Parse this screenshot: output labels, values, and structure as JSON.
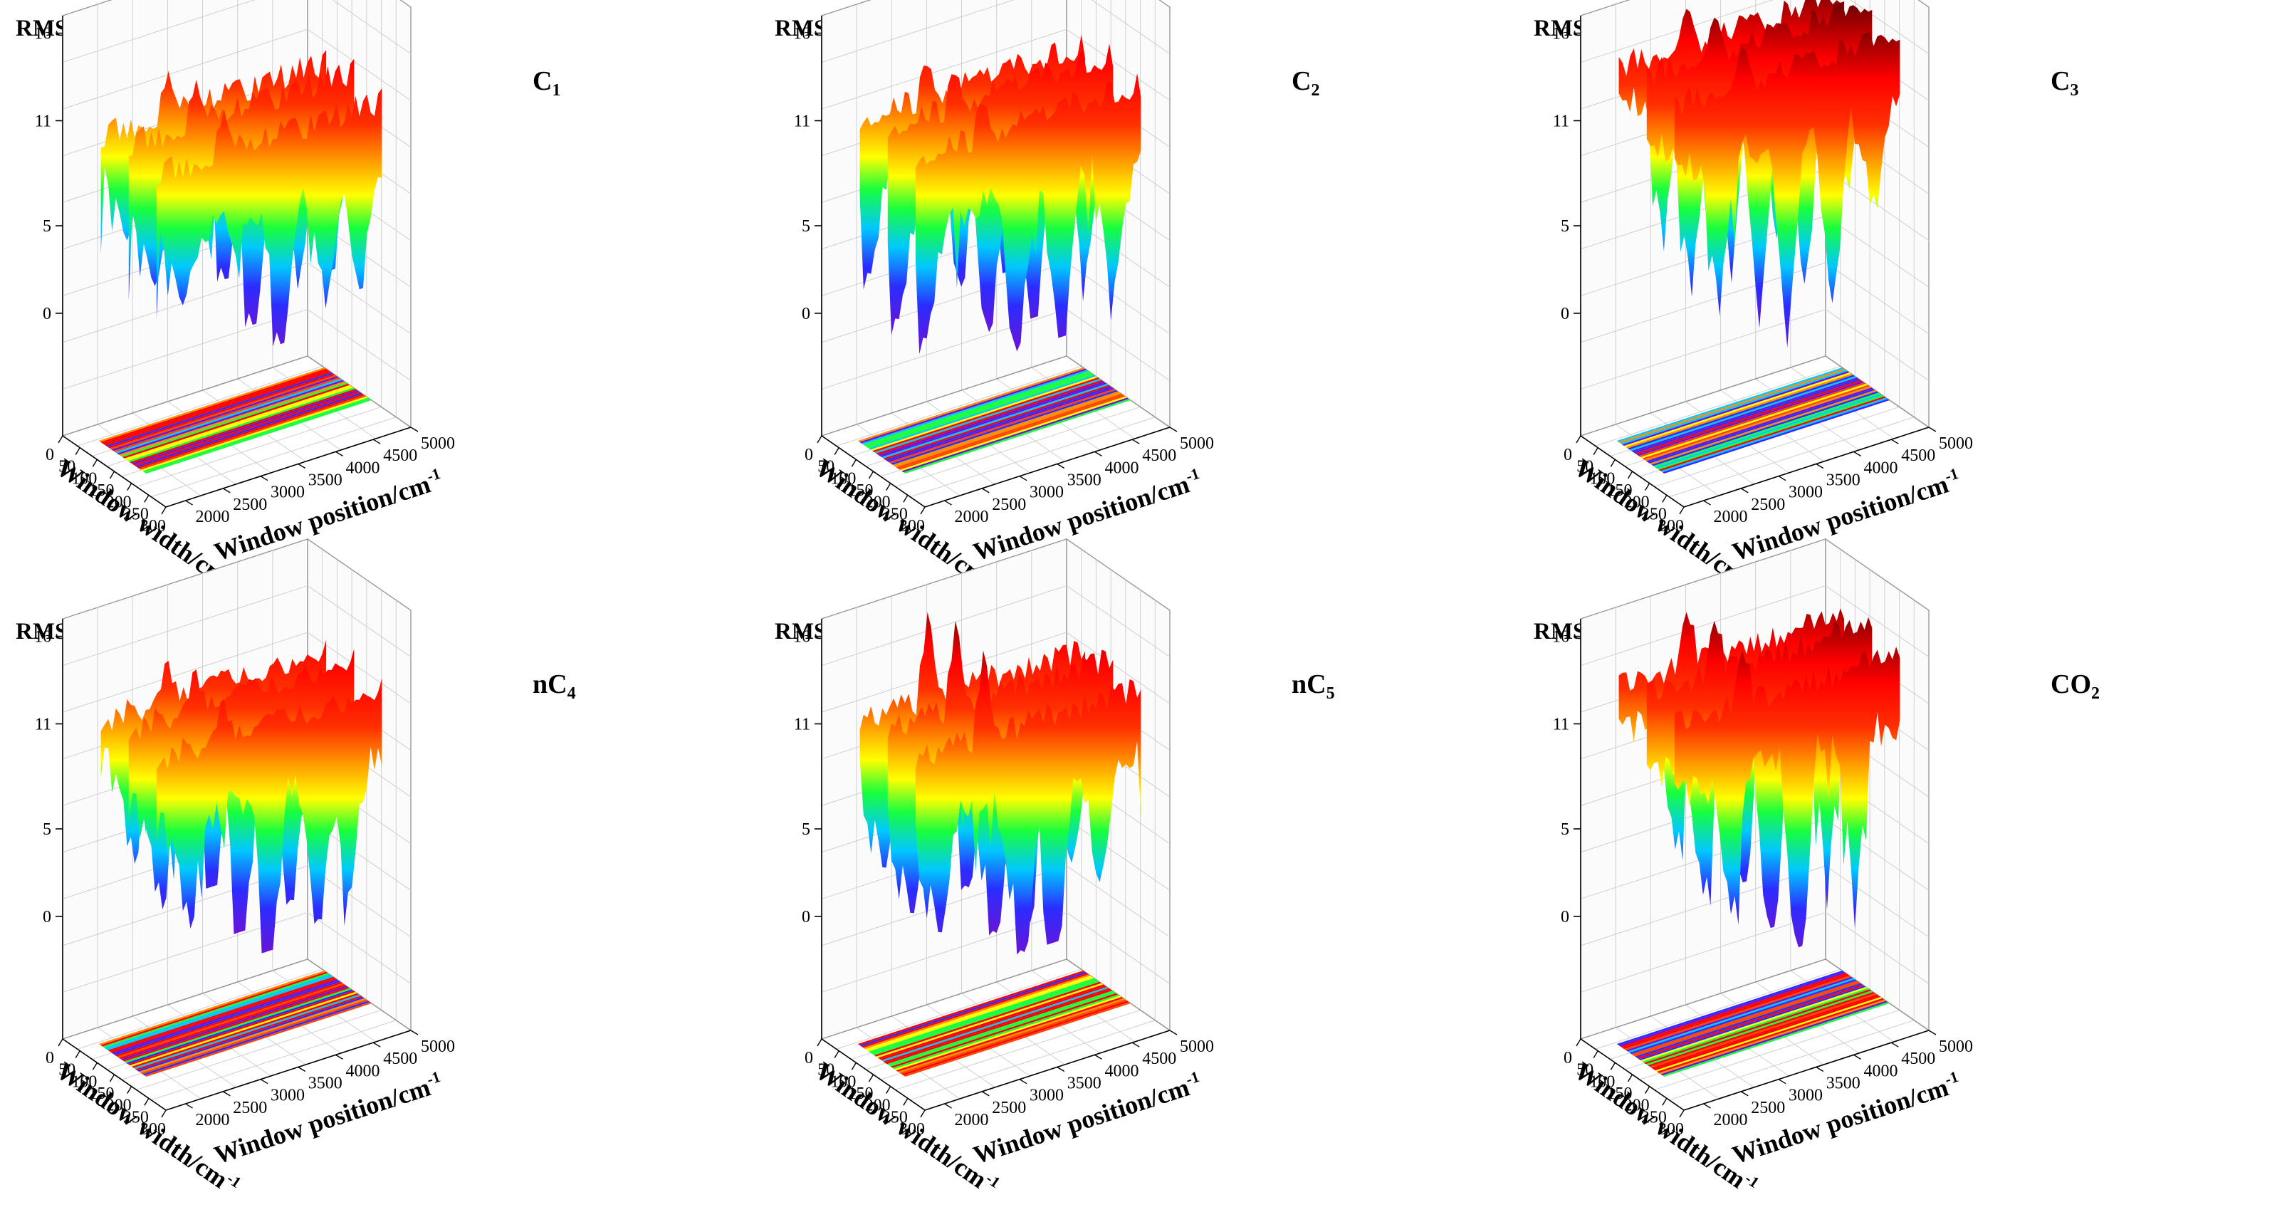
{
  "colors": {
    "colormap": [
      "#6a14d6",
      "#2b2cff",
      "#00c8ff",
      "#18ff3c",
      "#ffff00",
      "#ff8c00",
      "#ff0000",
      "#7a0000"
    ],
    "grid": "#cfcfcf",
    "axis": "#000000"
  },
  "chart_data": [
    {
      "type": "surface3d",
      "label_base": "C",
      "label_sub": "1",
      "zlabel": "RMSECV/%",
      "xlabel": "Window width/cm",
      "ylabel": "Window position/cm",
      "unit_exp": "-1",
      "xticks": [
        "0",
        "50",
        "100",
        "150",
        "200",
        "250",
        "300"
      ],
      "yticks": [
        "2000",
        "2500",
        "3000",
        "3500",
        "4000",
        "4500",
        "5000"
      ],
      "zticks": [
        "0",
        "5",
        "11",
        "16"
      ],
      "zlim": [
        -7,
        17
      ],
      "surface": {
        "base": 10.5,
        "min": -1.5,
        "dips": [
          {
            "x": 0.12,
            "d": 5
          },
          {
            "x": 0.55,
            "d": 9
          },
          {
            "x": 0.75,
            "d": 6
          },
          {
            "x": 0.9,
            "d": 7
          }
        ],
        "peak": 2.5,
        "seed": 11
      }
    },
    {
      "type": "surface3d",
      "label_base": "C",
      "label_sub": "2",
      "zlabel": "RMSECV/%",
      "xlabel": "Window width/cm",
      "ylabel": "Window position/cm",
      "unit_exp": "-1",
      "xticks": [
        "0",
        "50",
        "100",
        "150",
        "200",
        "250",
        "300"
      ],
      "yticks": [
        "2000",
        "2500",
        "3000",
        "3500",
        "4000",
        "4500",
        "5000"
      ],
      "zticks": [
        "0",
        "5",
        "11",
        "16"
      ],
      "zlim": [
        -7,
        17
      ],
      "surface": {
        "base": 11.5,
        "min": -1.5,
        "dips": [
          {
            "x": 0.05,
            "d": 7
          },
          {
            "x": 0.45,
            "d": 10
          },
          {
            "x": 0.65,
            "d": 11
          },
          {
            "x": 0.88,
            "d": 8
          }
        ],
        "peak": 2.5,
        "seed": 23
      }
    },
    {
      "type": "surface3d",
      "label_base": "C",
      "label_sub": "3",
      "zlabel": "RMSECV/%",
      "xlabel": "Window width/cm",
      "ylabel": "Window position/cm",
      "unit_exp": "-1",
      "xticks": [
        "0",
        "50",
        "100",
        "150",
        "200",
        "250",
        "300"
      ],
      "yticks": [
        "2000",
        "2500",
        "3000",
        "3500",
        "4000",
        "4500",
        "5000"
      ],
      "zticks": [
        "0",
        "5",
        "11",
        "16"
      ],
      "zlim": [
        -7,
        17
      ],
      "surface": {
        "base": 14.5,
        "min": -1.5,
        "dips": [
          {
            "x": 0.2,
            "d": 8
          },
          {
            "x": 0.5,
            "d": 12
          },
          {
            "x": 0.7,
            "d": 11
          },
          {
            "x": 0.88,
            "d": 6
          }
        ],
        "peak": 2.0,
        "seed": 37
      }
    },
    {
      "type": "surface3d",
      "label_base": "nC",
      "label_sub": "4",
      "zlabel": "RMSECV/%",
      "xlabel": "Window width/cm",
      "ylabel": "Window position/cm",
      "unit_exp": "-1",
      "xticks": [
        "0",
        "50",
        "100",
        "150",
        "200",
        "250",
        "300"
      ],
      "yticks": [
        "2000",
        "2500",
        "3000",
        "3500",
        "4000",
        "4500",
        "5000"
      ],
      "zticks": [
        "0",
        "5",
        "11",
        "16"
      ],
      "zlim": [
        -7,
        17
      ],
      "surface": {
        "base": 11.5,
        "min": -1.5,
        "dips": [
          {
            "x": 0.15,
            "d": 6
          },
          {
            "x": 0.5,
            "d": 12
          },
          {
            "x": 0.72,
            "d": 9
          },
          {
            "x": 0.85,
            "d": 8
          }
        ],
        "peak": 2.5,
        "seed": 41
      }
    },
    {
      "type": "surface3d",
      "label_base": "nC",
      "label_sub": "5",
      "zlabel": "RMSECV/%",
      "xlabel": "Window width/cm",
      "ylabel": "Window position/cm",
      "unit_exp": "-1",
      "xticks": [
        "0",
        "50",
        "100",
        "150",
        "200",
        "250",
        "300"
      ],
      "yticks": [
        "2000",
        "2500",
        "3000",
        "3500",
        "4000",
        "4500",
        "5000"
      ],
      "zticks": [
        "0",
        "5",
        "11",
        "16"
      ],
      "zlim": [
        -7,
        17
      ],
      "surface": {
        "base": 11.5,
        "min": -1.5,
        "dips": [
          {
            "x": 0.1,
            "d": 7
          },
          {
            "x": 0.48,
            "d": 11
          },
          {
            "x": 0.62,
            "d": 12
          },
          {
            "x": 0.82,
            "d": 7
          }
        ],
        "peak": 5.0,
        "seed": 53
      }
    },
    {
      "type": "surface3d",
      "label_base": "CO",
      "label_sub": "2",
      "zlabel": "RMSECV/%",
      "xlabel": "Window width/cm",
      "ylabel": "Window position/cm",
      "unit_exp": "-1",
      "xticks": [
        "0",
        "50",
        "100",
        "150",
        "200",
        "250",
        "300"
      ],
      "yticks": [
        "2000",
        "2500",
        "3000",
        "3500",
        "4000",
        "4500",
        "5000"
      ],
      "zticks": [
        "0",
        "5",
        "11",
        "16"
      ],
      "zlim": [
        -7,
        17
      ],
      "surface": {
        "base": 13.5,
        "min": -1.5,
        "dips": [
          {
            "x": 0.25,
            "d": 8
          },
          {
            "x": 0.55,
            "d": 14
          },
          {
            "x": 0.8,
            "d": 9
          }
        ],
        "peak": 4.0,
        "seed": 67
      }
    }
  ]
}
